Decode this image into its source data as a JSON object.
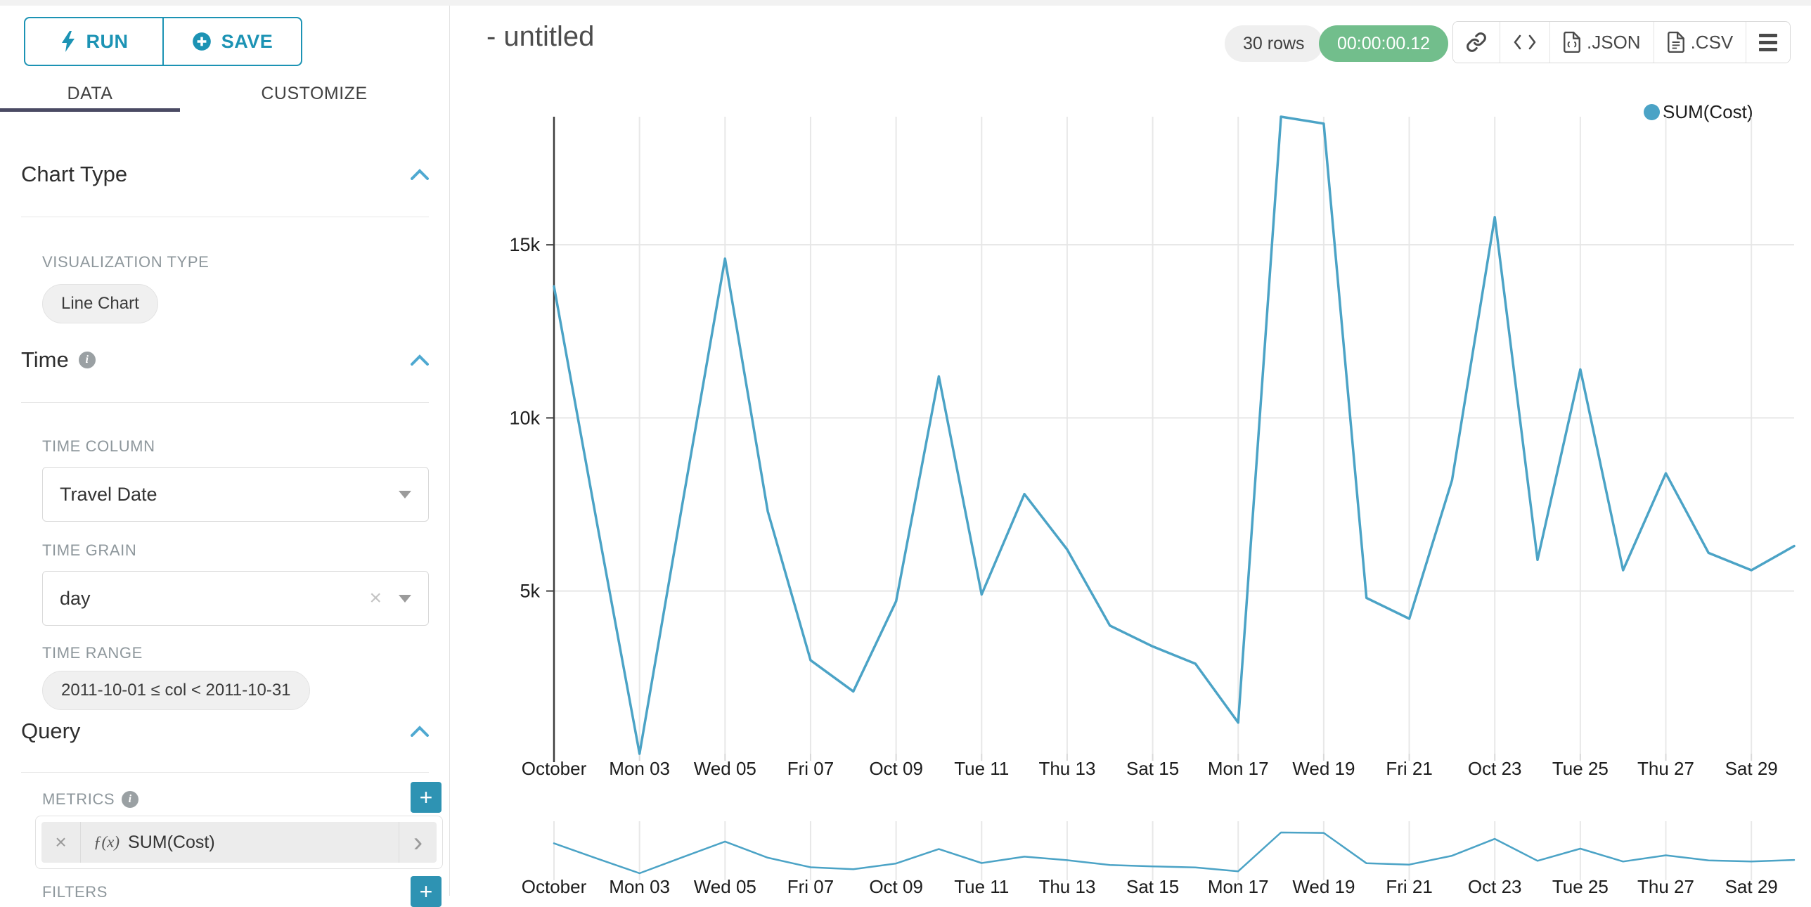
{
  "colors": {
    "accent": "#1c93b4",
    "line": "#4ba3c6",
    "timer_green": "#72be8c"
  },
  "toolbar": {
    "run": "RUN",
    "save": "SAVE"
  },
  "tabs": {
    "data": "DATA",
    "customize": "CUSTOMIZE"
  },
  "panel": {
    "chart_type": {
      "title": "Chart Type",
      "viz_type_label": "VISUALIZATION TYPE",
      "viz_type_value": "Line Chart"
    },
    "time": {
      "title": "Time",
      "column_label": "TIME COLUMN",
      "column_value": "Travel Date",
      "grain_label": "TIME GRAIN",
      "grain_value": "day",
      "range_label": "TIME RANGE",
      "range_value": "2011-10-01 ≤ col < 2011-10-31"
    },
    "query": {
      "title": "Query",
      "metrics_label": "METRICS",
      "metric_fx": "ƒ(x)",
      "metric_value": "SUM(Cost)",
      "filters_label": "FILTERS"
    }
  },
  "header": {
    "title": "- untitled",
    "rows_badge": "30 rows",
    "timer": "00:00:00.12",
    "json_label": ".JSON",
    "csv_label": ".CSV"
  },
  "legend": {
    "label": "SUM(Cost)"
  },
  "chart_data": {
    "type": "line",
    "title": "- untitled",
    "x": [
      "2011-10-01",
      "2011-10-02",
      "2011-10-03",
      "2011-10-04",
      "2011-10-05",
      "2011-10-06",
      "2011-10-07",
      "2011-10-08",
      "2011-10-09",
      "2011-10-10",
      "2011-10-11",
      "2011-10-12",
      "2011-10-13",
      "2011-10-14",
      "2011-10-15",
      "2011-10-16",
      "2011-10-17",
      "2011-10-18",
      "2011-10-19",
      "2011-10-20",
      "2011-10-21",
      "2011-10-22",
      "2011-10-23",
      "2011-10-24",
      "2011-10-25",
      "2011-10-26",
      "2011-10-27",
      "2011-10-28",
      "2011-10-29",
      "2011-10-30"
    ],
    "series": [
      {
        "name": "SUM(Cost)",
        "color": "#4ba3c6",
        "values": [
          13800,
          7000,
          300,
          7500,
          14600,
          7300,
          3000,
          2100,
          4700,
          11200,
          4900,
          7800,
          6200,
          4000,
          3400,
          2900,
          1200,
          18700,
          18500,
          4800,
          4200,
          8200,
          15800,
          5900,
          11400,
          5600,
          8400,
          6100,
          5600,
          6300
        ]
      }
    ],
    "x_tick_positions": [
      1,
      3,
      5,
      7,
      9,
      11,
      13,
      15,
      17,
      19,
      21,
      23,
      25,
      27,
      29
    ],
    "x_tick_labels": [
      "October",
      "Mon 03",
      "Wed 05",
      "Fri 07",
      "Oct 09",
      "Tue 11",
      "Thu 13",
      "Sat 15",
      "Mon 17",
      "Wed 19",
      "Fri 21",
      "Oct 23",
      "Tue 25",
      "Thu 27",
      "Sat 29"
    ],
    "y_ticks": [
      {
        "value": 5000,
        "label": "5k"
      },
      {
        "value": 10000,
        "label": "10k"
      },
      {
        "value": 15000,
        "label": "15k"
      }
    ],
    "ylim": [
      300,
      18700
    ],
    "grid": true,
    "legend_position": "top-right",
    "focus_chart": "mini context line chart below main chart repeats same series with same x ticks"
  }
}
